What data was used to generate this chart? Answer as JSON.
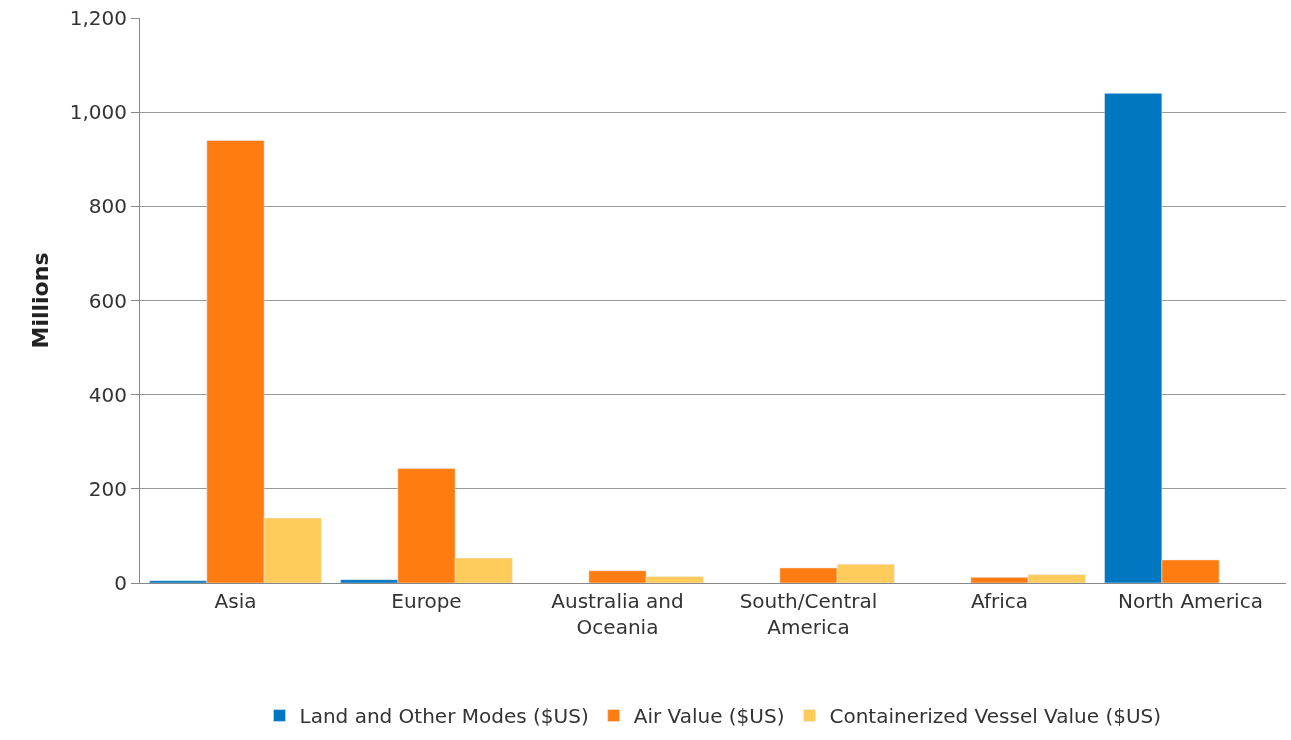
{
  "chart_data": {
    "type": "bar",
    "ylabel": "Millions",
    "categories": [
      "Asia",
      "Europe",
      "Australia and Oceania",
      "South/Central America",
      "Africa",
      "North America"
    ],
    "series": [
      {
        "name": "Land and Other Modes ($US)",
        "color": "#0077c0",
        "values": [
          5,
          7,
          null,
          null,
          null,
          1040
        ]
      },
      {
        "name": "Air Value ($US)",
        "color": "#ff7c10",
        "values": [
          940,
          243,
          26,
          32,
          12,
          49
        ]
      },
      {
        "name": "Containerized Vessel Value ($US)",
        "color": "#ffcc5c",
        "values": [
          138,
          53,
          14,
          40,
          18,
          null
        ]
      }
    ],
    "ylim": [
      0,
      1200
    ],
    "yticks": [
      0,
      {
        "value": 200,
        "label": "200"
      },
      {
        "value": 400,
        "label": "400"
      },
      {
        "value": 600,
        "label": "600"
      },
      {
        "value": 800,
        "label": "800"
      },
      {
        "value": 1000,
        "label": "1,000"
      },
      {
        "value": 1200,
        "label": "1,200"
      }
    ],
    "grid": "y",
    "legend": "bottom"
  }
}
